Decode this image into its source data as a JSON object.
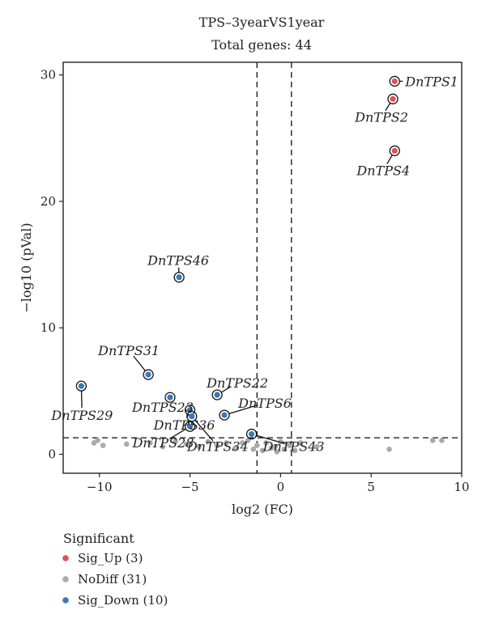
{
  "chart_data": {
    "type": "scatter",
    "title": "TPS–3yearVS1year",
    "subtitle": "Total genes: 44",
    "xlabel": "log2 (FC)",
    "ylabel": "−log10 (pVal)",
    "xlim": [
      -12,
      10
    ],
    "ylim": [
      -1.5,
      31
    ],
    "xticks": [
      -10,
      -5,
      0,
      5,
      10
    ],
    "yticks": [
      0,
      10,
      20,
      30
    ],
    "vlines": [
      -1.3,
      0.6
    ],
    "hline": 1.3,
    "legend": {
      "title": "Significant",
      "placement": "bottom-left",
      "entries": [
        {
          "key": "up",
          "label": "Sig_Up (3)",
          "color": "#e0505a"
        },
        {
          "key": "nodiff",
          "label": "NoDiff (31)",
          "color": "#aaaaaa"
        },
        {
          "key": "down",
          "label": "Sig_Down (10)",
          "color": "#3a78b8"
        }
      ]
    },
    "points": [
      {
        "x": 6.3,
        "y": 29.5,
        "group": "up",
        "label": "DnTPS1"
      },
      {
        "x": 6.2,
        "y": 28.1,
        "group": "up",
        "label": "DnTPS2"
      },
      {
        "x": 6.3,
        "y": 24.0,
        "group": "up",
        "label": "DnTPS4"
      },
      {
        "x": -5.6,
        "y": 14.0,
        "group": "down",
        "label": "DnTPS46"
      },
      {
        "x": -7.3,
        "y": 6.3,
        "group": "down",
        "label": "DnTPS31"
      },
      {
        "x": -11.0,
        "y": 5.4,
        "group": "down",
        "label": "DnTPS29"
      },
      {
        "x": -6.1,
        "y": 4.5,
        "group": "down",
        "label": "DnTPS23"
      },
      {
        "x": -3.5,
        "y": 4.7,
        "group": "down",
        "label": "DnTPS22"
      },
      {
        "x": -5.0,
        "y": 3.5,
        "group": "down",
        "label": "DnTPS36"
      },
      {
        "x": -4.9,
        "y": 3.0,
        "group": "down",
        "label": "DnTPS34"
      },
      {
        "x": -3.1,
        "y": 3.1,
        "group": "down",
        "label": "DnTPS6"
      },
      {
        "x": -5.0,
        "y": 2.2,
        "group": "down",
        "label": "DnTPS28"
      },
      {
        "x": -1.6,
        "y": 1.6,
        "group": "down",
        "label": "DnTPS43"
      },
      {
        "x": -10.3,
        "y": 0.9,
        "group": "nodiff"
      },
      {
        "x": -10.1,
        "y": 1.1,
        "group": "nodiff"
      },
      {
        "x": -9.8,
        "y": 0.7,
        "group": "nodiff"
      },
      {
        "x": -8.5,
        "y": 0.8,
        "group": "nodiff"
      },
      {
        "x": -7.2,
        "y": 0.9,
        "group": "nodiff"
      },
      {
        "x": -6.5,
        "y": 0.6,
        "group": "nodiff"
      },
      {
        "x": -5.8,
        "y": 1.0,
        "group": "nodiff"
      },
      {
        "x": -5.2,
        "y": 0.8,
        "group": "nodiff"
      },
      {
        "x": -4.5,
        "y": 0.6,
        "group": "nodiff"
      },
      {
        "x": -4.0,
        "y": 1.0,
        "group": "nodiff"
      },
      {
        "x": -3.5,
        "y": 0.7,
        "group": "nodiff"
      },
      {
        "x": -3.0,
        "y": 0.9,
        "group": "nodiff"
      },
      {
        "x": -2.5,
        "y": 0.5,
        "group": "nodiff"
      },
      {
        "x": -2.1,
        "y": 0.9,
        "group": "nodiff"
      },
      {
        "x": -1.8,
        "y": 1.1,
        "group": "nodiff"
      },
      {
        "x": -1.5,
        "y": 0.4,
        "group": "nodiff"
      },
      {
        "x": -1.3,
        "y": 0.7,
        "group": "nodiff"
      },
      {
        "x": -1.0,
        "y": 0.3,
        "group": "nodiff"
      },
      {
        "x": -0.8,
        "y": 0.9,
        "group": "nodiff"
      },
      {
        "x": -0.5,
        "y": 0.5,
        "group": "nodiff"
      },
      {
        "x": -0.3,
        "y": 0.6,
        "group": "nodiff"
      },
      {
        "x": 0.0,
        "y": 1.0,
        "group": "nodiff"
      },
      {
        "x": 0.2,
        "y": 0.4,
        "group": "nodiff"
      },
      {
        "x": 0.5,
        "y": 0.7,
        "group": "nodiff"
      },
      {
        "x": 0.8,
        "y": 0.3,
        "group": "nodiff"
      },
      {
        "x": 1.1,
        "y": 0.9,
        "group": "nodiff"
      },
      {
        "x": 2.0,
        "y": 0.6,
        "group": "nodiff"
      },
      {
        "x": 6.0,
        "y": 0.4,
        "group": "nodiff"
      },
      {
        "x": 8.4,
        "y": 1.1,
        "group": "nodiff"
      },
      {
        "x": 8.9,
        "y": 1.1,
        "group": "nodiff"
      },
      {
        "x": -0.2,
        "y": 0.2,
        "group": "nodiff"
      }
    ]
  }
}
